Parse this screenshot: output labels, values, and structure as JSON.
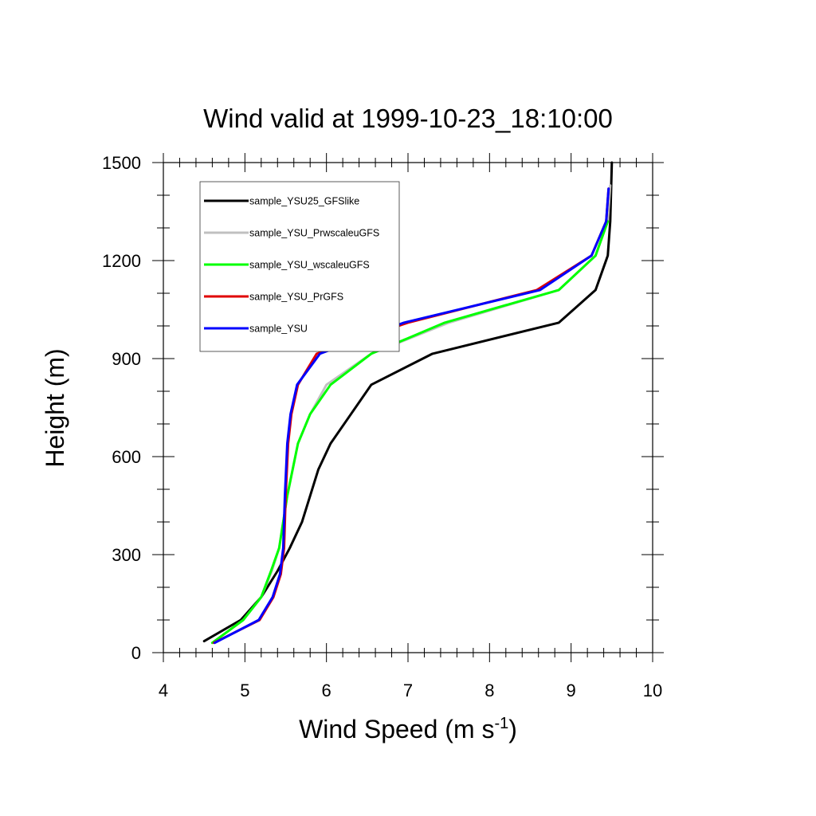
{
  "chart_data": {
    "type": "line",
    "title": "Wind valid at 1999-10-23_18:10:00",
    "xlabel": "Wind Speed (m s",
    "xlabel_sup": "-1",
    "xlabel_end": ")",
    "ylabel": "Height (m)",
    "xlim": [
      4,
      10
    ],
    "ylim": [
      0,
      1500
    ],
    "xticks": [
      "4",
      "5",
      "6",
      "7",
      "8",
      "9",
      "10"
    ],
    "yticks": [
      "0",
      "300",
      "600",
      "900",
      "1200",
      "1500"
    ],
    "grid": false,
    "legend_position": "top-left",
    "series": [
      {
        "name": "sample_YSU25_GFSlike",
        "color": "#000000",
        "x": [
          4.5,
          4.95,
          5.2,
          5.4,
          5.55,
          5.7,
          5.9,
          6.05,
          6.3,
          6.55,
          7.3,
          8.85,
          9.3,
          9.45,
          9.48,
          9.5
        ],
        "y": [
          35,
          100,
          170,
          250,
          320,
          400,
          560,
          640,
          730,
          820,
          915,
          1010,
          1110,
          1215,
          1320,
          1500
        ]
      },
      {
        "name": "sample_YSU_PrwscaleuGFS",
        "color": "#c0c0c0",
        "x": [
          4.6,
          4.98,
          5.2,
          5.33,
          5.42,
          5.52,
          5.65,
          5.8,
          6.0,
          6.55,
          7.5,
          8.85,
          9.3,
          9.45,
          9.48
        ],
        "y": [
          30,
          100,
          170,
          250,
          320,
          480,
          640,
          730,
          820,
          915,
          1010,
          1110,
          1215,
          1320,
          1430
        ]
      },
      {
        "name": "sample_YSU_wscaleuGFS",
        "color": "#00ff00",
        "x": [
          4.6,
          4.98,
          5.2,
          5.32,
          5.42,
          5.52,
          5.65,
          5.8,
          6.05,
          6.55,
          7.45,
          8.85,
          9.3,
          9.45
        ],
        "y": [
          30,
          100,
          170,
          250,
          320,
          480,
          640,
          730,
          820,
          915,
          1010,
          1110,
          1215,
          1320
        ]
      },
      {
        "name": "sample_YSU_PrGFS",
        "color": "#e00000",
        "x": [
          4.62,
          5.18,
          5.35,
          5.44,
          5.48,
          5.5,
          5.53,
          5.57,
          5.65,
          5.88,
          7.0,
          8.58,
          9.25,
          9.43,
          9.46
        ],
        "y": [
          30,
          100,
          170,
          240,
          320,
          480,
          640,
          730,
          820,
          915,
          1010,
          1110,
          1215,
          1320,
          1420
        ]
      },
      {
        "name": "sample_YSU",
        "color": "#0000ff",
        "x": [
          4.63,
          5.17,
          5.34,
          5.43,
          5.47,
          5.49,
          5.52,
          5.56,
          5.64,
          5.92,
          6.95,
          8.62,
          9.25,
          9.43,
          9.46
        ],
        "y": [
          30,
          100,
          170,
          240,
          320,
          480,
          640,
          730,
          820,
          915,
          1010,
          1110,
          1215,
          1320,
          1420
        ]
      }
    ]
  }
}
